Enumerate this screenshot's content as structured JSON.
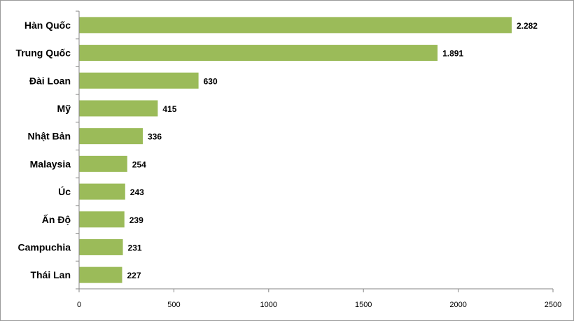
{
  "chart_data": {
    "type": "bar",
    "orientation": "horizontal",
    "categories": [
      "Hàn Quốc",
      "Trung Quốc",
      "Đài Loan",
      "Mỹ",
      "Nhật Bản",
      "Malaysia",
      "Úc",
      "Ấn Độ",
      "Campuchia",
      "Thái Lan"
    ],
    "values": [
      2282,
      1891,
      630,
      415,
      336,
      254,
      243,
      239,
      231,
      227
    ],
    "value_labels": [
      "2.282",
      "1.891",
      "630",
      "415",
      "336",
      "254",
      "243",
      "239",
      "231",
      "227"
    ],
    "x_ticks": [
      0,
      500,
      1000,
      1500,
      2000,
      2500
    ],
    "x_tick_labels": [
      "0",
      "500",
      "1000",
      "1500",
      "2000",
      "2500"
    ],
    "xlim": [
      0,
      2500
    ],
    "grid": false,
    "legend": "none",
    "bar_color": "#9bbb59"
  }
}
